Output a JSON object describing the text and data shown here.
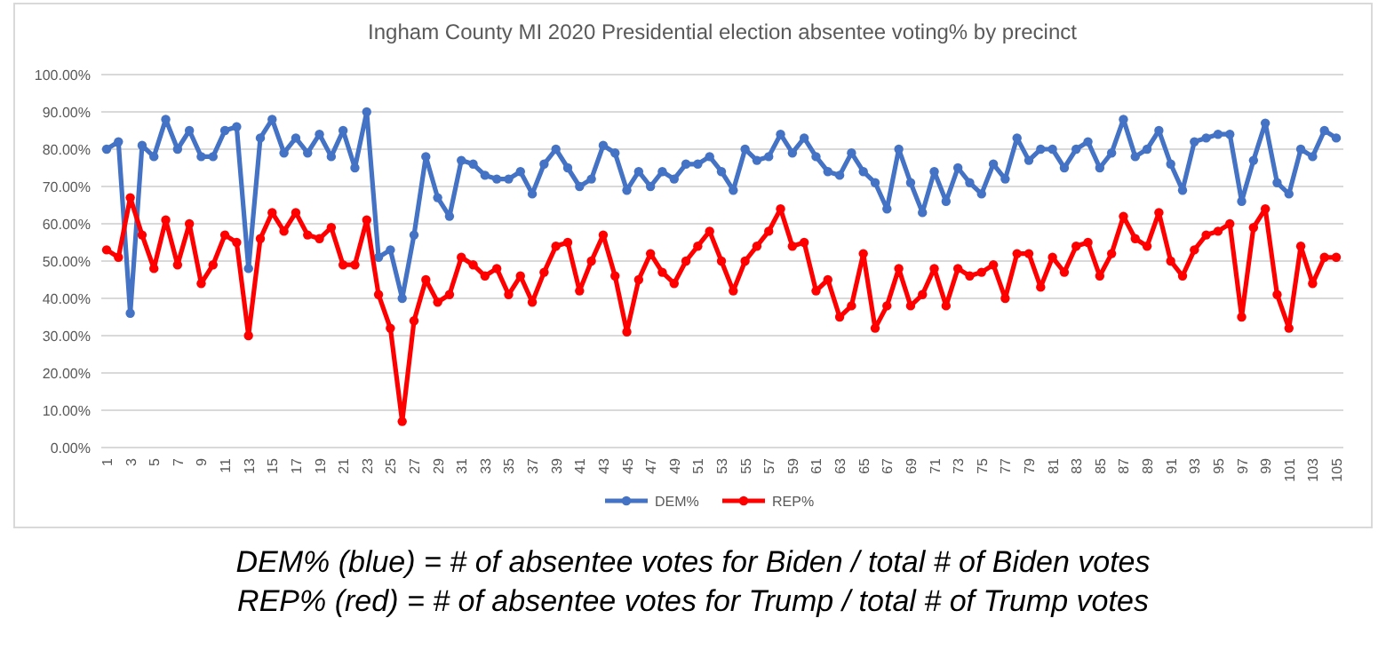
{
  "chart_data": {
    "type": "line",
    "title": "Ingham County MI 2020 Presidential election absentee voting% by precinct",
    "categories": [
      "1",
      null,
      "3",
      null,
      "5",
      null,
      "7",
      null,
      "9",
      null,
      "11",
      null,
      "13",
      null,
      "15",
      null,
      "17",
      null,
      "19",
      null,
      "21",
      null,
      "23",
      null,
      "25",
      null,
      "27",
      null,
      "29",
      null,
      "31",
      null,
      "33",
      null,
      "35",
      null,
      "37",
      null,
      "39",
      null,
      "41",
      null,
      "43",
      null,
      "45",
      null,
      "47",
      null,
      "49",
      null,
      "51",
      null,
      "53",
      null,
      "55",
      null,
      "57",
      null,
      "59",
      null,
      "61",
      null,
      "63",
      null,
      "65",
      null,
      "67",
      null,
      "69",
      null,
      "71",
      null,
      "73",
      null,
      "75",
      null,
      "77",
      null,
      "79",
      null,
      "81",
      null,
      "83",
      null,
      "85",
      null,
      "87",
      null,
      "89",
      null,
      "91",
      null,
      "93",
      null,
      "95",
      null,
      "97",
      null,
      "99",
      null,
      "101",
      null,
      "103",
      null,
      "105"
    ],
    "series": [
      {
        "name": "DEM%",
        "color": "#4472c4",
        "values": [
          80,
          82,
          36,
          81,
          78,
          88,
          80,
          85,
          78,
          78,
          85,
          86,
          48,
          83,
          88,
          79,
          83,
          79,
          84,
          78,
          85,
          75,
          90,
          51,
          53,
          40,
          57,
          78,
          67,
          62,
          77,
          76,
          73,
          72,
          72,
          74,
          68,
          76,
          80,
          75,
          70,
          72,
          81,
          79,
          69,
          74,
          70,
          74,
          72,
          76,
          76,
          78,
          74,
          69,
          80,
          77,
          78,
          84,
          79,
          83,
          78,
          74,
          73,
          79,
          74,
          71,
          64,
          80,
          71,
          63,
          74,
          66,
          75,
          71,
          68,
          76,
          72,
          83,
          77,
          80,
          80,
          75,
          80,
          82,
          75,
          79,
          88,
          78,
          80,
          85,
          76,
          69,
          82,
          83,
          84,
          84,
          66,
          77,
          87,
          71,
          68,
          80,
          78,
          85,
          83
        ]
      },
      {
        "name": "REP%",
        "color": "#ff0000",
        "values": [
          53,
          51,
          67,
          57,
          48,
          61,
          49,
          60,
          44,
          49,
          57,
          55,
          30,
          56,
          63,
          58,
          63,
          57,
          56,
          59,
          49,
          49,
          61,
          41,
          32,
          7,
          34,
          45,
          39,
          41,
          51,
          49,
          46,
          48,
          41,
          46,
          39,
          47,
          54,
          55,
          42,
          50,
          57,
          46,
          31,
          45,
          52,
          47,
          44,
          50,
          54,
          58,
          50,
          42,
          50,
          54,
          58,
          64,
          54,
          55,
          42,
          45,
          35,
          38,
          52,
          32,
          38,
          48,
          38,
          41,
          48,
          38,
          48,
          46,
          47,
          49,
          40,
          52,
          52,
          43,
          51,
          47,
          54,
          55,
          46,
          52,
          62,
          56,
          54,
          63,
          50,
          46,
          53,
          57,
          58,
          60,
          35,
          59,
          64,
          41,
          32,
          54,
          44,
          51,
          51
        ]
      }
    ],
    "ylim": [
      0,
      100
    ],
    "yticks": [
      {
        "value": 0,
        "label": "0.00%"
      },
      {
        "value": 10,
        "label": "10.00%"
      },
      {
        "value": 20,
        "label": "20.00%"
      },
      {
        "value": 30,
        "label": "30.00%"
      },
      {
        "value": 40,
        "label": "40.00%"
      },
      {
        "value": 50,
        "label": "50.00%"
      },
      {
        "value": 60,
        "label": "60.00%"
      },
      {
        "value": 70,
        "label": "70.00%"
      },
      {
        "value": 80,
        "label": "80.00%"
      },
      {
        "value": 90,
        "label": "90.00%"
      },
      {
        "value": 100,
        "label": "100.00%"
      }
    ],
    "grid": "y",
    "legend": "bottom",
    "marker": "circle",
    "line_style": "solid",
    "annotations": [
      "DEM% (blue) = # of absentee votes for Biden / total # of Biden votes",
      "REP% (red) = # of absentee votes for Trump / total # of Trump votes"
    ]
  }
}
